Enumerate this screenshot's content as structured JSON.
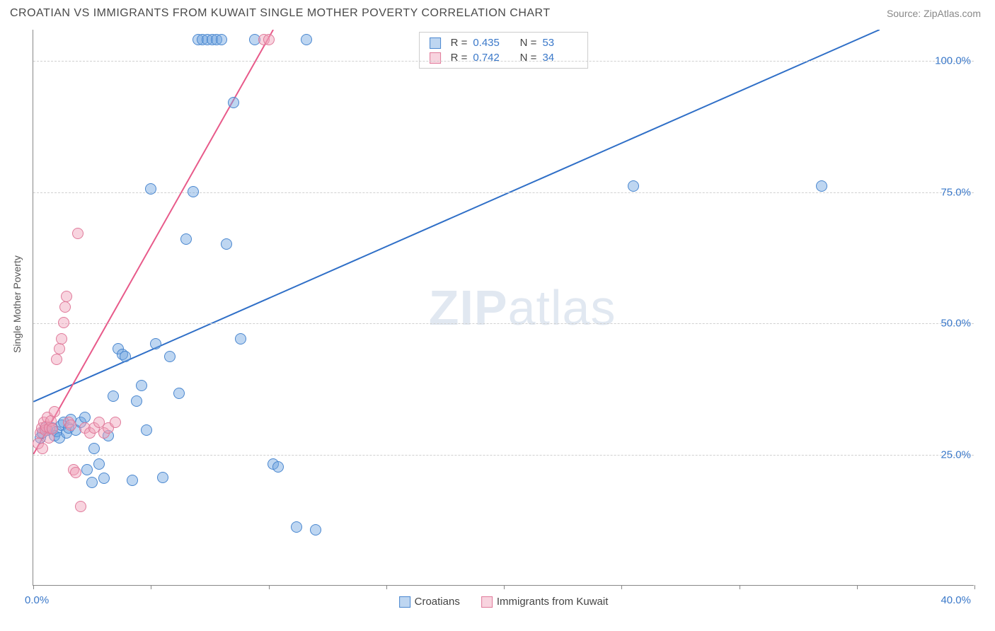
{
  "header": {
    "title": "CROATIAN VS IMMIGRANTS FROM KUWAIT SINGLE MOTHER POVERTY CORRELATION CHART",
    "source": "Source: ZipAtlas.com"
  },
  "watermark": {
    "zip": "ZIP",
    "atlas": "atlas"
  },
  "chart": {
    "type": "scatter",
    "ylabel": "Single Mother Poverty",
    "xlim": [
      0,
      40
    ],
    "ylim": [
      0,
      106
    ],
    "background_color": "#ffffff",
    "grid_color": "#d0d0d0",
    "axis_color": "#888888",
    "tick_label_color": "#3a78c9",
    "yticks": [
      {
        "value": 25,
        "label": "25.0%"
      },
      {
        "value": 50,
        "label": "50.0%"
      },
      {
        "value": 75,
        "label": "75.0%"
      },
      {
        "value": 100,
        "label": "100.0%"
      }
    ],
    "xticks": [
      0,
      5,
      10,
      15,
      20,
      25,
      30,
      35,
      40
    ],
    "xaxis_left_label": "0.0%",
    "xaxis_right_label": "40.0%",
    "marker_radius": 8,
    "marker_opacity": 0.55,
    "series": [
      {
        "name": "Croatians",
        "color": "#6fa4e0",
        "fill": "rgba(111,164,224,0.45)",
        "stroke": "#4a87cf",
        "r_value": "0.435",
        "n_value": "53",
        "trendline": {
          "x1": 0,
          "y1": 35,
          "x2": 36,
          "y2": 106,
          "color": "#2f6fc7",
          "width": 2
        },
        "points": [
          [
            0.3,
            28
          ],
          [
            0.4,
            29
          ],
          [
            0.5,
            30
          ],
          [
            0.6,
            29.5
          ],
          [
            0.8,
            30
          ],
          [
            0.9,
            28.5
          ],
          [
            1.0,
            29.3
          ],
          [
            1.1,
            28
          ],
          [
            1.2,
            30.5
          ],
          [
            1.3,
            31
          ],
          [
            1.4,
            29
          ],
          [
            1.5,
            30
          ],
          [
            1.6,
            31.5
          ],
          [
            1.8,
            29.5
          ],
          [
            2.0,
            31
          ],
          [
            2.2,
            32
          ],
          [
            2.3,
            22
          ],
          [
            2.5,
            19.5
          ],
          [
            2.6,
            26
          ],
          [
            2.8,
            23
          ],
          [
            3.0,
            20.3
          ],
          [
            3.2,
            28.5
          ],
          [
            3.4,
            36
          ],
          [
            3.6,
            45
          ],
          [
            3.8,
            44
          ],
          [
            3.9,
            43.5
          ],
          [
            4.2,
            20
          ],
          [
            4.4,
            35
          ],
          [
            4.6,
            38
          ],
          [
            4.8,
            29.5
          ],
          [
            5.0,
            75.5
          ],
          [
            5.2,
            46
          ],
          [
            5.5,
            20.5
          ],
          [
            5.8,
            43.5
          ],
          [
            6.2,
            36.5
          ],
          [
            6.5,
            66
          ],
          [
            6.8,
            75
          ],
          [
            7.0,
            104
          ],
          [
            7.2,
            104
          ],
          [
            7.4,
            104
          ],
          [
            7.6,
            104
          ],
          [
            7.8,
            104
          ],
          [
            8.0,
            104
          ],
          [
            8.2,
            65
          ],
          [
            8.5,
            92
          ],
          [
            8.8,
            47
          ],
          [
            9.4,
            104
          ],
          [
            10.2,
            23
          ],
          [
            10.4,
            22.5
          ],
          [
            11.2,
            11
          ],
          [
            11.6,
            104
          ],
          [
            12.0,
            10.5
          ],
          [
            25.5,
            76
          ],
          [
            33.5,
            76
          ]
        ]
      },
      {
        "name": "Immigrants from Kuwait",
        "color": "#f0a0b8",
        "fill": "rgba(240,160,184,0.45)",
        "stroke": "#e07a9a",
        "r_value": "0.742",
        "n_value": "34",
        "trendline": {
          "x1": 0,
          "y1": 25,
          "x2": 10.2,
          "y2": 106,
          "color": "#e85a8a",
          "width": 2
        },
        "points": [
          [
            0.2,
            27
          ],
          [
            0.3,
            29
          ],
          [
            0.35,
            30
          ],
          [
            0.4,
            26
          ],
          [
            0.45,
            31
          ],
          [
            0.5,
            29.5
          ],
          [
            0.55,
            30.2
          ],
          [
            0.6,
            32
          ],
          [
            0.65,
            28
          ],
          [
            0.7,
            30
          ],
          [
            0.75,
            31.3
          ],
          [
            0.8,
            29.8
          ],
          [
            0.9,
            33
          ],
          [
            1.0,
            43
          ],
          [
            1.1,
            45
          ],
          [
            1.2,
            47
          ],
          [
            1.3,
            50
          ],
          [
            1.35,
            53
          ],
          [
            1.4,
            55
          ],
          [
            1.5,
            31
          ],
          [
            1.6,
            30.5
          ],
          [
            1.7,
            22
          ],
          [
            1.8,
            21.5
          ],
          [
            1.9,
            67
          ],
          [
            2.0,
            15
          ],
          [
            2.2,
            30
          ],
          [
            2.4,
            29
          ],
          [
            2.6,
            30
          ],
          [
            2.8,
            31
          ],
          [
            3.0,
            29
          ],
          [
            3.2,
            30
          ],
          [
            3.5,
            31
          ],
          [
            9.8,
            104
          ],
          [
            10.0,
            104
          ]
        ]
      }
    ],
    "bottom_legend": [
      {
        "label": "Croatians",
        "fill": "rgba(111,164,224,0.45)",
        "stroke": "#4a87cf"
      },
      {
        "label": "Immigrants from Kuwait",
        "fill": "rgba(240,160,184,0.45)",
        "stroke": "#e07a9a"
      }
    ]
  }
}
